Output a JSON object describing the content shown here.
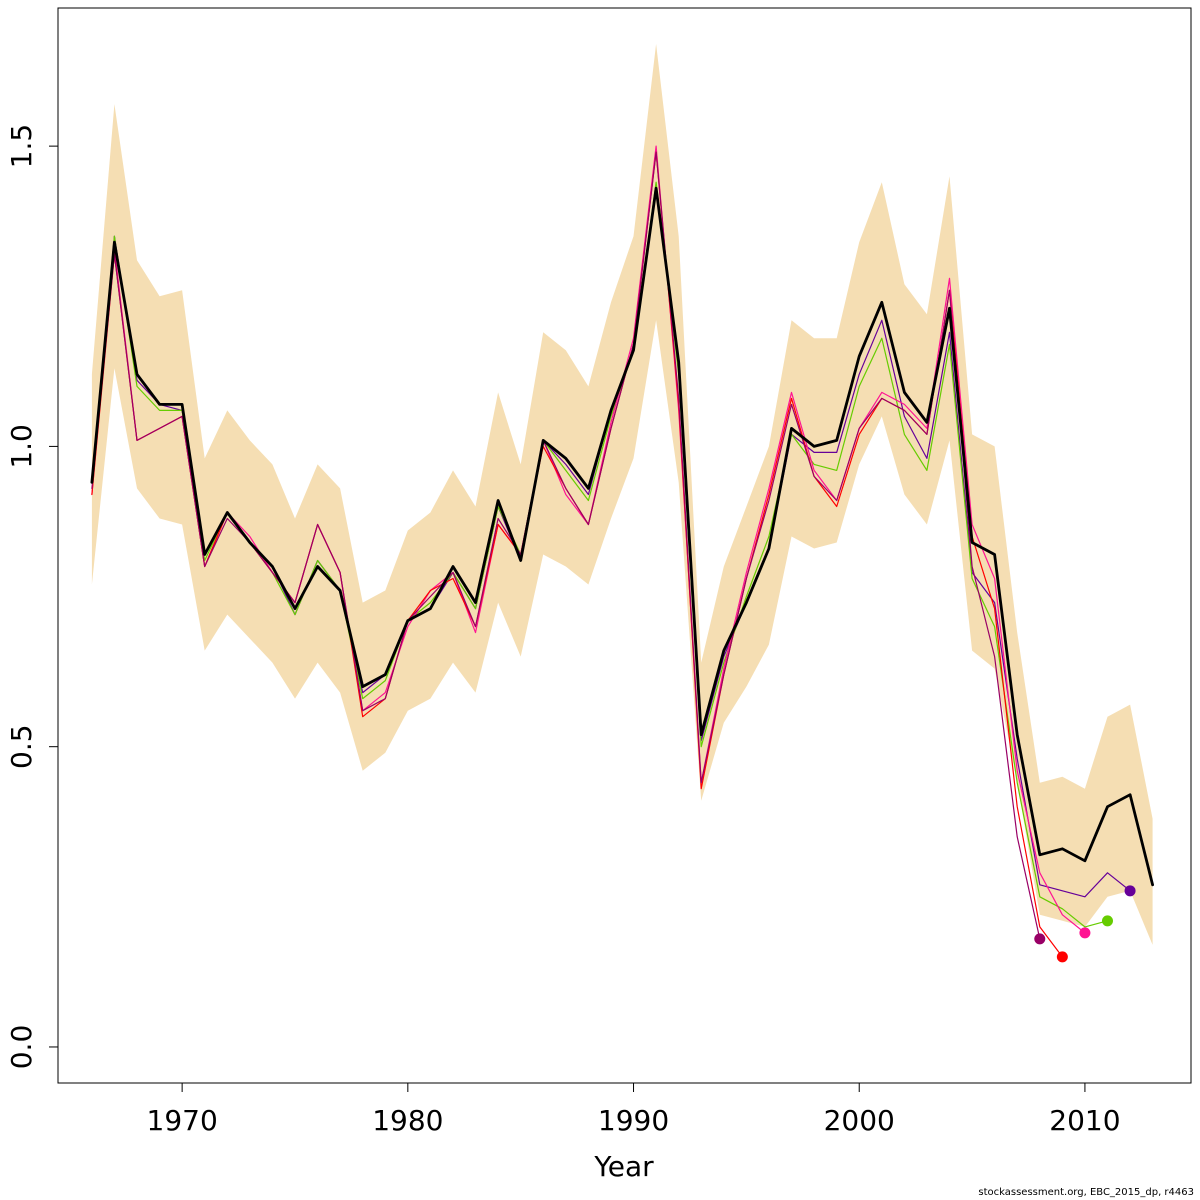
{
  "chart_data": {
    "type": "line",
    "title": "",
    "xlabel": "Year",
    "ylabel": "",
    "xlim": [
      1964.5,
      2014.7
    ],
    "ylim": [
      -0.06,
      1.73
    ],
    "x_ticks": [
      1970,
      1980,
      1990,
      2000,
      2010
    ],
    "x_tick_labels": [
      "1970",
      "1980",
      "1990",
      "2000",
      "2010"
    ],
    "y_ticks": [
      0.0,
      0.5,
      1.0,
      1.5
    ],
    "y_tick_labels": [
      "0.0",
      "0.5",
      "1.0",
      "1.5"
    ],
    "grid": false,
    "legend": "none",
    "colors": {
      "band": "#f5deb3",
      "main": "#000000",
      "peel_green": "#66cc00",
      "peel_purple": "#660099",
      "peel_magenta": "#ff1493",
      "peel_red": "#ff0000",
      "peel_plum": "#990066"
    },
    "band": {
      "x": [
        1966,
        1967,
        1968,
        1969,
        1970,
        1971,
        1972,
        1973,
        1974,
        1975,
        1976,
        1977,
        1978,
        1979,
        1980,
        1981,
        1982,
        1983,
        1984,
        1985,
        1986,
        1987,
        1988,
        1989,
        1990,
        1991,
        1992,
        1993,
        1994,
        1995,
        1996,
        1997,
        1998,
        1999,
        2000,
        2001,
        2002,
        2003,
        2004,
        2005,
        2006,
        2007,
        2008,
        2009,
        2010,
        2011,
        2012,
        2013
      ],
      "upper": [
        1.12,
        1.57,
        1.31,
        1.25,
        1.26,
        0.98,
        1.06,
        1.01,
        0.97,
        0.88,
        0.97,
        0.93,
        0.74,
        0.76,
        0.86,
        0.89,
        0.96,
        0.9,
        1.09,
        0.97,
        1.19,
        1.16,
        1.1,
        1.24,
        1.35,
        1.67,
        1.35,
        0.64,
        0.8,
        0.9,
        1.0,
        1.21,
        1.18,
        1.18,
        1.34,
        1.44,
        1.27,
        1.22,
        1.45,
        1.02,
        1.0,
        0.69,
        0.44,
        0.45,
        0.43,
        0.55,
        0.57,
        0.38
      ],
      "lower": [
        0.77,
        1.13,
        0.93,
        0.88,
        0.87,
        0.66,
        0.72,
        0.68,
        0.64,
        0.58,
        0.64,
        0.59,
        0.46,
        0.49,
        0.56,
        0.58,
        0.64,
        0.59,
        0.74,
        0.65,
        0.82,
        0.8,
        0.77,
        0.88,
        0.98,
        1.21,
        0.94,
        0.41,
        0.54,
        0.6,
        0.67,
        0.85,
        0.83,
        0.84,
        0.97,
        1.05,
        0.92,
        0.87,
        1.01,
        0.66,
        0.63,
        0.44,
        0.22,
        0.21,
        0.2,
        0.25,
        0.26,
        0.17
      ]
    },
    "series": [
      {
        "x": [
          1966,
          1967,
          1968,
          1969,
          1970,
          1971,
          1972,
          1973,
          1974,
          1975,
          1976,
          1977,
          1978,
          1979,
          1980,
          1981,
          1982,
          1983,
          1984,
          1985,
          1986,
          1987,
          1988,
          1989,
          1990,
          1991,
          1992,
          1993,
          1994,
          1995,
          1996,
          1997,
          1998,
          1999,
          2000,
          2001,
          2002,
          2003,
          2004,
          2005,
          2006,
          2007,
          2008,
          2009,
          2010,
          2011,
          2012,
          2013
        ],
        "values": [
          0.94,
          1.34,
          1.12,
          1.07,
          1.07,
          0.82,
          0.89,
          0.84,
          0.8,
          0.73,
          0.8,
          0.76,
          0.6,
          0.62,
          0.71,
          0.73,
          0.8,
          0.74,
          0.91,
          0.81,
          1.01,
          0.98,
          0.93,
          1.06,
          1.16,
          1.43,
          1.14,
          0.52,
          0.66,
          0.74,
          0.83,
          1.03,
          1.0,
          1.01,
          1.15,
          1.24,
          1.09,
          1.04,
          1.23,
          0.84,
          0.82,
          0.52,
          0.32,
          0.33,
          0.31,
          0.4,
          0.42,
          0.27
        ],
        "color": "#000000",
        "width": 2.8,
        "endpoint": false
      },
      {
        "x": [
          1966,
          1967,
          1968,
          1969,
          1970,
          1971,
          1972,
          1973,
          1974,
          1975,
          1976,
          1977,
          1978,
          1979,
          1980,
          1981,
          1982,
          1983,
          1984,
          1985,
          1986,
          1987,
          1988,
          1989,
          1990,
          1991,
          1992,
          1993,
          1994,
          1995,
          1996,
          1997,
          1998,
          1999,
          2000,
          2001,
          2002,
          2003,
          2004,
          2005,
          2006,
          2007,
          2008,
          2009,
          2010,
          2011,
          2012
        ],
        "values": [
          0.94,
          1.35,
          1.11,
          1.07,
          1.06,
          0.82,
          0.89,
          0.84,
          0.8,
          0.72,
          0.81,
          0.76,
          0.59,
          0.62,
          0.71,
          0.73,
          0.79,
          0.73,
          0.9,
          0.81,
          1.01,
          0.97,
          0.92,
          1.06,
          1.16,
          1.43,
          1.13,
          0.51,
          0.65,
          0.74,
          0.83,
          1.02,
          0.99,
          0.99,
          1.12,
          1.21,
          1.05,
          0.98,
          1.19,
          0.79,
          0.74,
          0.48,
          0.27,
          0.26,
          0.25,
          0.29,
          0.26
        ],
        "color": "#660099",
        "width": 1.2,
        "endpoint": true
      },
      {
        "x": [
          1966,
          1967,
          1968,
          1969,
          1970,
          1971,
          1972,
          1973,
          1974,
          1975,
          1976,
          1977,
          1978,
          1979,
          1980,
          1981,
          1982,
          1983,
          1984,
          1985,
          1986,
          1987,
          1988,
          1989,
          1990,
          1991,
          1992,
          1993,
          1994,
          1995,
          1996,
          1997,
          1998,
          1999,
          2000,
          2001,
          2002,
          2003,
          2004,
          2005,
          2006,
          2007,
          2008,
          2009,
          2010,
          2011
        ],
        "values": [
          0.94,
          1.35,
          1.1,
          1.06,
          1.06,
          0.81,
          0.89,
          0.84,
          0.79,
          0.72,
          0.81,
          0.76,
          0.58,
          0.61,
          0.71,
          0.74,
          0.79,
          0.73,
          0.9,
          0.82,
          1.01,
          0.96,
          0.91,
          1.05,
          1.16,
          1.44,
          1.12,
          0.5,
          0.64,
          0.75,
          0.85,
          1.02,
          0.97,
          0.96,
          1.1,
          1.18,
          1.02,
          0.96,
          1.17,
          0.78,
          0.7,
          0.44,
          0.25,
          0.23,
          0.2,
          0.21
        ],
        "color": "#66cc00",
        "width": 1.2,
        "endpoint": true
      },
      {
        "x": [
          1966,
          1967,
          1968,
          1969,
          1970,
          1971,
          1972,
          1973,
          1974,
          1975,
          1976,
          1977,
          1978,
          1979,
          1980,
          1981,
          1982,
          1983,
          1984,
          1985,
          1986,
          1987,
          1988,
          1989,
          1990,
          1991,
          1992,
          1993,
          1994,
          1995,
          1996,
          1997,
          1998,
          1999,
          2000,
          2001,
          2002,
          2003,
          2004,
          2005,
          2006,
          2007,
          2008,
          2009,
          2010
        ],
        "values": [
          0.92,
          1.33,
          1.01,
          1.03,
          1.05,
          0.8,
          0.89,
          0.85,
          0.79,
          0.74,
          0.87,
          0.79,
          0.56,
          0.59,
          0.7,
          0.76,
          0.79,
          0.69,
          0.87,
          0.82,
          1.01,
          0.92,
          0.87,
          1.04,
          1.18,
          1.5,
          1.06,
          0.44,
          0.63,
          0.79,
          0.93,
          1.09,
          0.96,
          0.91,
          1.03,
          1.09,
          1.07,
          1.03,
          1.28,
          0.87,
          0.78,
          0.46,
          0.29,
          0.22,
          0.19
        ],
        "color": "#ff1493",
        "width": 1.2,
        "endpoint": true
      },
      {
        "x": [
          1966,
          1967,
          1968,
          1969,
          1970,
          1971,
          1972,
          1973,
          1974,
          1975,
          1976,
          1977,
          1978,
          1979,
          1980,
          1981,
          1982,
          1983,
          1984,
          1985,
          1986,
          1987,
          1988,
          1989,
          1990,
          1991,
          1992,
          1993,
          1994,
          1995,
          1996,
          1997,
          1998,
          1999,
          2000,
          2001,
          2002,
          2003,
          2004,
          2005,
          2006,
          2007,
          2008,
          2009
        ],
        "values": [
          0.92,
          1.32,
          1.01,
          1.03,
          1.05,
          0.8,
          0.89,
          0.84,
          0.79,
          0.74,
          0.87,
          0.79,
          0.55,
          0.58,
          0.71,
          0.76,
          0.78,
          0.7,
          0.87,
          0.82,
          1.0,
          0.93,
          0.87,
          1.03,
          1.17,
          1.49,
          1.07,
          0.43,
          0.62,
          0.78,
          0.92,
          1.08,
          0.95,
          0.9,
          1.02,
          1.08,
          1.06,
          1.02,
          1.26,
          0.85,
          0.73,
          0.4,
          0.2,
          0.15
        ],
        "color": "#ff0000",
        "width": 1.2,
        "endpoint": true
      },
      {
        "x": [
          1966,
          1967,
          1968,
          1969,
          1970,
          1971,
          1972,
          1973,
          1974,
          1975,
          1976,
          1977,
          1978,
          1979,
          1980,
          1981,
          1982,
          1983,
          1984,
          1985,
          1986,
          1987,
          1988,
          1989,
          1990,
          1991,
          1992,
          1993,
          1994,
          1995,
          1996,
          1997,
          1998,
          1999,
          2000,
          2001,
          2002,
          2003,
          2004,
          2005,
          2006,
          2007,
          2008
        ],
        "values": [
          0.93,
          1.32,
          1.01,
          1.03,
          1.05,
          0.8,
          0.88,
          0.84,
          0.79,
          0.74,
          0.87,
          0.79,
          0.56,
          0.58,
          0.71,
          0.75,
          0.79,
          0.7,
          0.88,
          0.82,
          1.01,
          0.93,
          0.87,
          1.03,
          1.17,
          1.49,
          1.08,
          0.44,
          0.62,
          0.78,
          0.91,
          1.07,
          0.95,
          0.91,
          1.03,
          1.08,
          1.06,
          1.02,
          1.26,
          0.8,
          0.65,
          0.35,
          0.18
        ],
        "color": "#990066",
        "width": 1.2,
        "endpoint": true
      }
    ]
  },
  "footer": {
    "note": "stockassessment.org, EBC_2015_dp, r4463"
  }
}
